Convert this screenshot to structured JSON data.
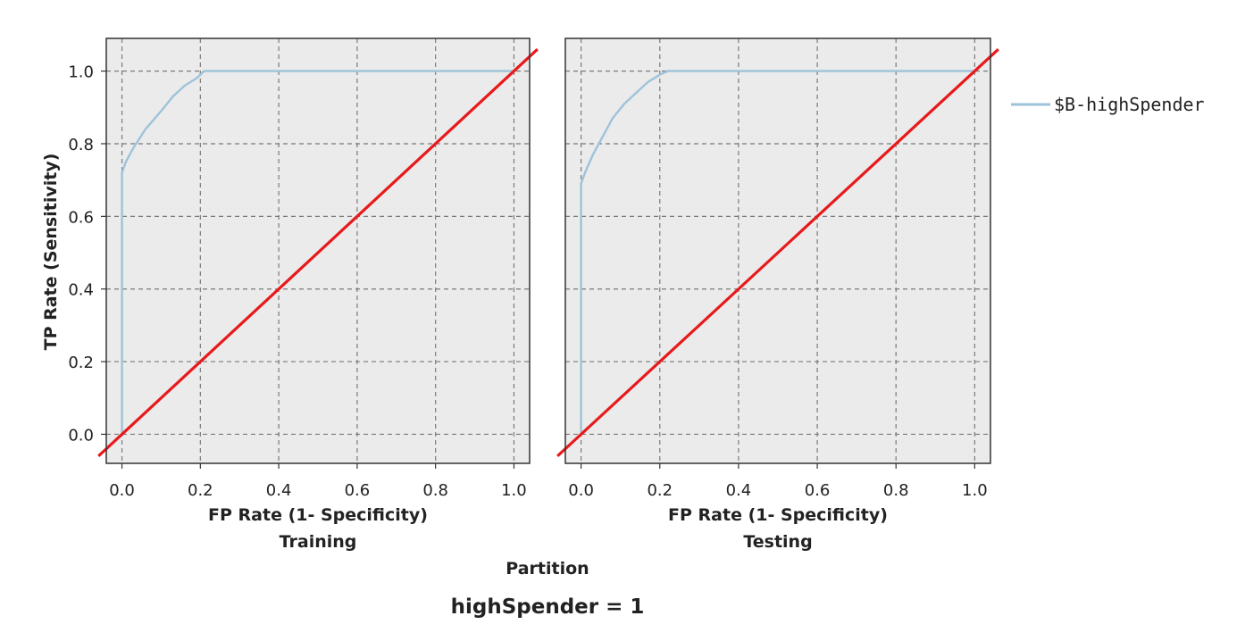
{
  "chart_data": {
    "type": "line",
    "title": "highSpender = 1",
    "xlabel": "FP Rate (1- Specificity)",
    "ylabel": "TP Rate (Sensitivity)",
    "panel_axis_label": "Partition",
    "xlim": [
      -0.04,
      1.04
    ],
    "ylim": [
      -0.08,
      1.09
    ],
    "ticks": [
      0.0,
      0.2,
      0.4,
      0.6,
      0.8,
      1.0
    ],
    "tick_labels": [
      "0.0",
      "0.2",
      "0.4",
      "0.6",
      "0.8",
      "1.0"
    ],
    "grid": true,
    "legend_position": "right",
    "colors": {
      "roc": "#9ec3d9",
      "diagonal": "#e8191b",
      "panel_bg": "#ebebeb",
      "grid": "#7a7a7a"
    },
    "series": [
      {
        "name": "$B-highSpender",
        "role": "roc"
      }
    ],
    "diagonal": {
      "x": [
        -0.04,
        1.04
      ],
      "y": [
        -0.04,
        1.04
      ]
    },
    "panels": [
      {
        "label": "Training",
        "roc": {
          "x": [
            0.0,
            0.0,
            0.0,
            0.01,
            0.03,
            0.06,
            0.1,
            0.13,
            0.16,
            0.19,
            0.21,
            0.3,
            0.5,
            0.7,
            1.0
          ],
          "y": [
            0.0,
            0.4,
            0.72,
            0.75,
            0.79,
            0.84,
            0.89,
            0.93,
            0.96,
            0.98,
            1.0,
            1.0,
            1.0,
            1.0,
            1.0
          ]
        }
      },
      {
        "label": "Testing",
        "roc": {
          "x": [
            0.0,
            0.0,
            0.0,
            0.01,
            0.03,
            0.06,
            0.08,
            0.11,
            0.14,
            0.17,
            0.2,
            0.22,
            0.4,
            0.7,
            1.0
          ],
          "y": [
            0.0,
            0.35,
            0.69,
            0.72,
            0.77,
            0.83,
            0.87,
            0.91,
            0.94,
            0.97,
            0.99,
            1.0,
            1.0,
            1.0,
            1.0
          ]
        }
      }
    ]
  }
}
